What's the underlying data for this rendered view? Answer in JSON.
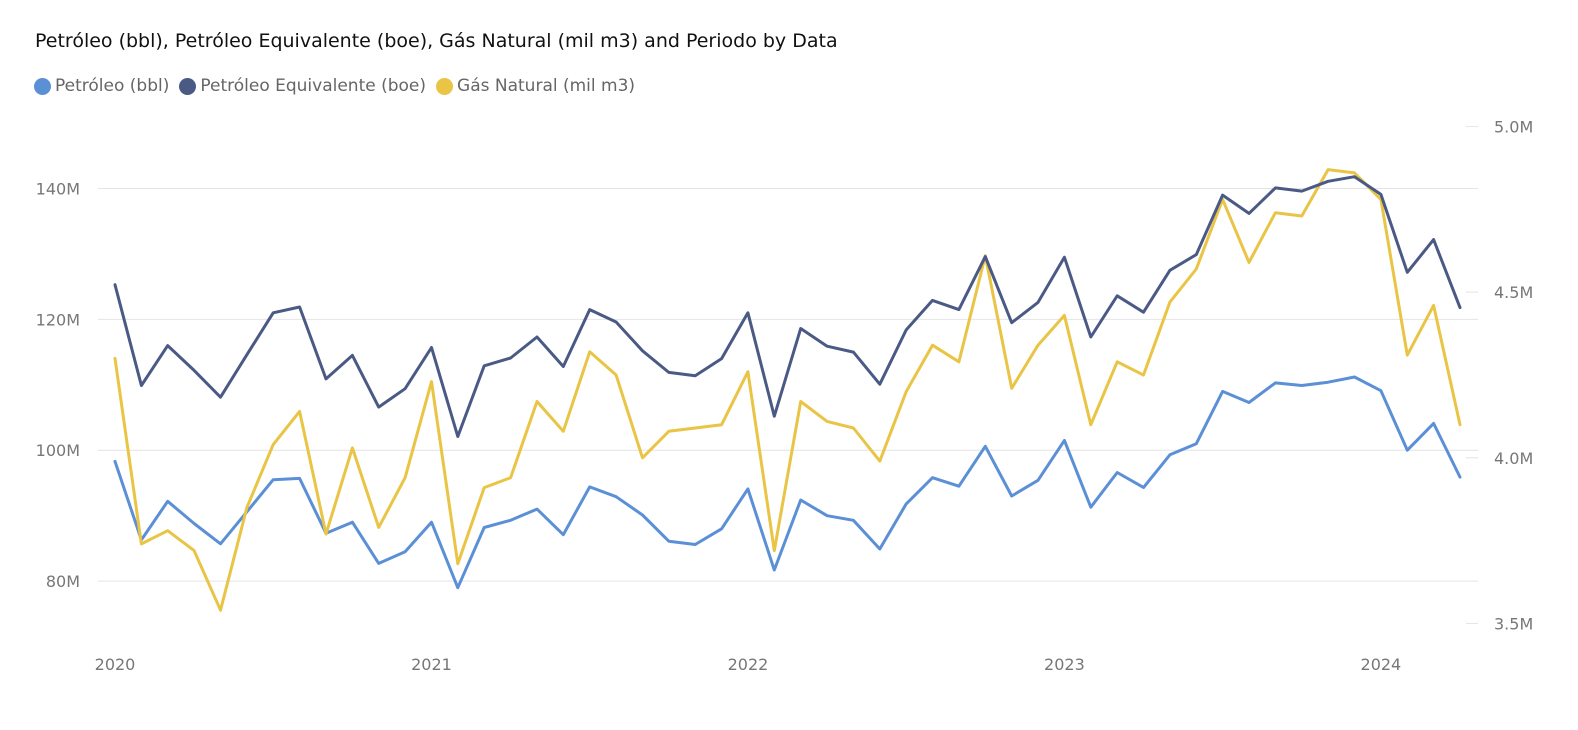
{
  "chart_data": {
    "type": "line",
    "title": "Petróleo (bbl), Petróleo Equivalente (boe), Gás Natural (mil m3) and Periodo by Data",
    "xlabel": "",
    "ylabel": "",
    "legend_position": "top-left",
    "grid": true,
    "x_ticks": [
      "2020",
      "2021",
      "2022",
      "2023",
      "2024"
    ],
    "y_left_ticks": [
      "80M",
      "100M",
      "120M",
      "140M"
    ],
    "y_left_values": [
      80,
      100,
      120,
      140
    ],
    "y_left_unit": "millions",
    "y_left_lim": [
      71,
      152
    ],
    "y_right_ticks": [
      "3.5M",
      "4.0M",
      "4.5M",
      "5.0M"
    ],
    "y_right_values": [
      3.5,
      4.0,
      4.5,
      5.0
    ],
    "y_right_unit": "millions",
    "y_right_lim": [
      3.45,
      5.05
    ],
    "x_start": "2020-01",
    "x_end": "2024-04",
    "series": [
      {
        "name": "Petróleo (bbl)",
        "color": "#5b8fd6",
        "axis": "left",
        "values": [
          98.3,
          86.3,
          92.2,
          88.8,
          85.7,
          90.6,
          95.5,
          95.7,
          87.3,
          89.0,
          82.7,
          84.5,
          89.0,
          79.0,
          88.2,
          89.3,
          91.0,
          87.1,
          94.4,
          92.9,
          90.1,
          86.1,
          85.6,
          88.0,
          94.1,
          81.7,
          92.4,
          90.0,
          89.3,
          84.9,
          91.8,
          95.8,
          94.5,
          100.6,
          93.0,
          95.4,
          101.5,
          91.3,
          96.6,
          94.3,
          99.3,
          101.0,
          109.0,
          107.3,
          110.3,
          109.9,
          110.4,
          111.2,
          109.1,
          100.0,
          104.1,
          95.9
        ]
      },
      {
        "name": "Petróleo Equivalente (boe)",
        "color": "#4a5a85",
        "axis": "left",
        "values": [
          125.3,
          109.9,
          116.0,
          112.2,
          108.1,
          114.6,
          121.0,
          121.9,
          110.9,
          114.5,
          106.6,
          109.4,
          115.7,
          102.1,
          112.9,
          114.1,
          117.3,
          112.8,
          121.5,
          119.6,
          115.2,
          111.9,
          111.4,
          114.0,
          121.0,
          105.2,
          118.6,
          115.9,
          115.0,
          110.1,
          118.4,
          122.9,
          121.5,
          129.6,
          119.5,
          122.6,
          129.5,
          117.3,
          123.6,
          121.1,
          127.5,
          129.9,
          139.0,
          136.2,
          140.1,
          139.6,
          141.1,
          141.8,
          139.1,
          127.2,
          132.2,
          121.8
        ]
      },
      {
        "name": "Gás Natural (mil m3)",
        "color": "#e9c445",
        "axis": "right",
        "values": [
          4.3,
          3.74,
          3.78,
          3.72,
          3.54,
          3.85,
          4.04,
          4.14,
          3.77,
          4.03,
          3.79,
          3.94,
          4.23,
          3.68,
          3.91,
          3.94,
          4.17,
          4.08,
          4.32,
          4.25,
          4.0,
          4.08,
          4.09,
          4.1,
          4.26,
          3.72,
          4.17,
          4.11,
          4.09,
          3.99,
          4.2,
          4.34,
          4.29,
          4.61,
          4.21,
          4.34,
          4.43,
          4.1,
          4.29,
          4.25,
          4.47,
          4.57,
          4.78,
          4.59,
          4.74,
          4.73,
          4.87,
          4.86,
          4.78,
          4.31,
          4.46,
          4.1
        ]
      }
    ]
  }
}
